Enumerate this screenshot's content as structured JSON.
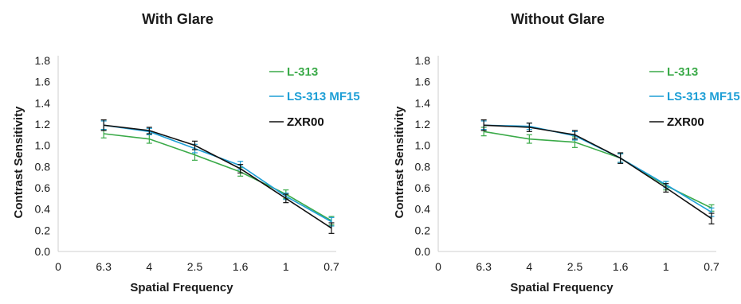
{
  "chart_data": [
    {
      "type": "line",
      "title": "With Glare",
      "xlabel": "Spatial Frequency",
      "ylabel": "Contrast Sensitivity",
      "categories": [
        "0",
        "6.3",
        "4",
        "2.5",
        "1.6",
        "1",
        "0.7"
      ],
      "yticks": [
        "0.0",
        "0.2",
        "0.4",
        "0.6",
        "0.8",
        "1.0",
        "1.2",
        "1.4",
        "1.6",
        "1.8"
      ],
      "ylim": [
        0,
        1.8
      ],
      "grid": false,
      "legend_position": "top-right",
      "series": [
        {
          "name": "L-313",
          "color": "#3aaa48",
          "values": [
            null,
            1.11,
            1.06,
            0.91,
            0.75,
            0.54,
            0.29
          ],
          "errors": [
            null,
            0.04,
            0.04,
            0.05,
            0.04,
            0.04,
            0.04
          ]
        },
        {
          "name": "LS-313 MF15",
          "color": "#1e9fd6",
          "values": [
            null,
            1.19,
            1.13,
            0.97,
            0.81,
            0.52,
            0.28
          ],
          "errors": [
            null,
            0.04,
            0.03,
            0.04,
            0.04,
            0.03,
            0.04
          ]
        },
        {
          "name": "ZXR00",
          "color": "#111111",
          "values": [
            null,
            1.19,
            1.14,
            1.0,
            0.78,
            0.5,
            0.22
          ],
          "errors": [
            null,
            0.05,
            0.03,
            0.04,
            0.04,
            0.04,
            0.05
          ]
        }
      ]
    },
    {
      "type": "line",
      "title": "Without Glare",
      "xlabel": "Spatial Frequency",
      "ylabel": "Contrast Sensitivity",
      "categories": [
        "0",
        "6.3",
        "4",
        "2.5",
        "1.6",
        "1",
        "0.7"
      ],
      "yticks": [
        "0.0",
        "0.2",
        "0.4",
        "0.6",
        "0.8",
        "1.0",
        "1.2",
        "1.4",
        "1.6",
        "1.8"
      ],
      "ylim": [
        0,
        1.8
      ],
      "grid": false,
      "legend_position": "top-right",
      "series": [
        {
          "name": "L-313",
          "color": "#3aaa48",
          "values": [
            null,
            1.13,
            1.06,
            1.03,
            0.88,
            0.62,
            0.41
          ],
          "errors": [
            null,
            0.04,
            0.04,
            0.05,
            0.04,
            0.04,
            0.03
          ]
        },
        {
          "name": "LS-313 MF15",
          "color": "#1e9fd6",
          "values": [
            null,
            1.19,
            1.18,
            1.09,
            0.88,
            0.63,
            0.37
          ],
          "errors": [
            null,
            0.04,
            0.03,
            0.04,
            0.04,
            0.03,
            0.04
          ]
        },
        {
          "name": "ZXR00",
          "color": "#111111",
          "values": [
            null,
            1.19,
            1.17,
            1.1,
            0.88,
            0.6,
            0.31
          ],
          "errors": [
            null,
            0.05,
            0.04,
            0.04,
            0.05,
            0.04,
            0.05
          ]
        }
      ]
    }
  ]
}
